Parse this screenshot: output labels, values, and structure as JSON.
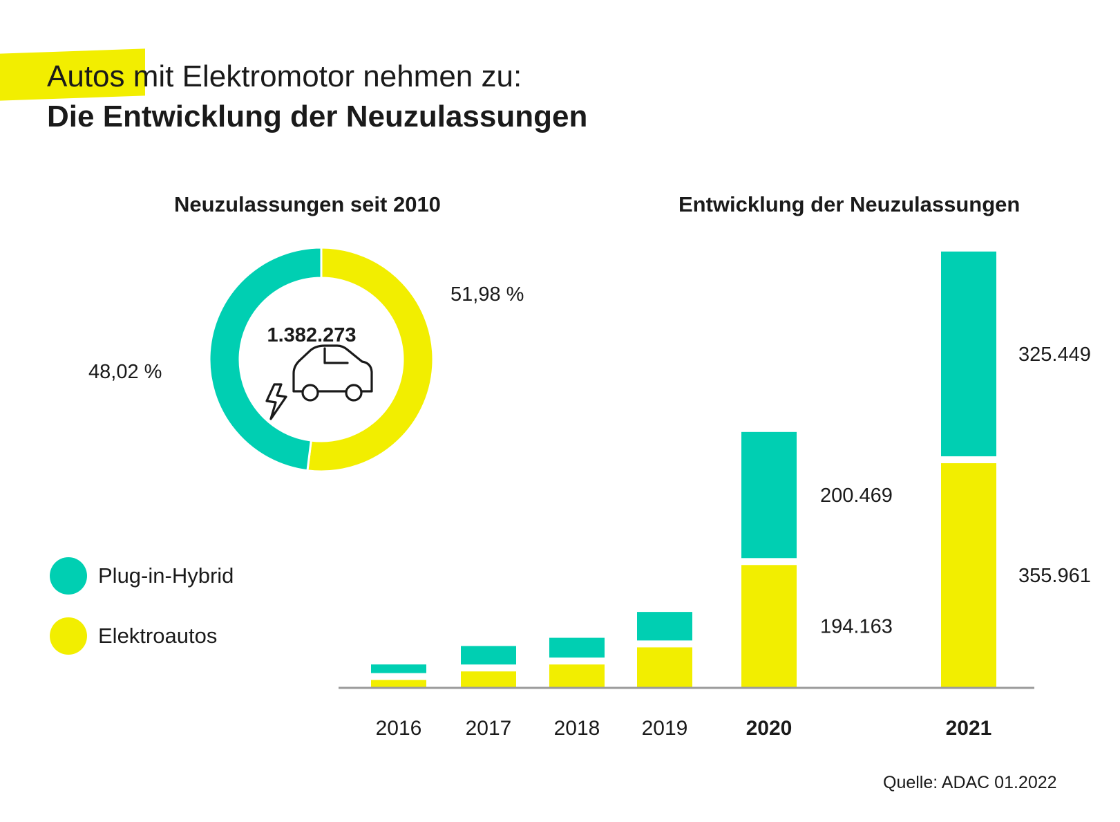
{
  "title": {
    "line1_highlight": "Autos",
    "line1_rest": " mit Elektromotor nehmen zu:",
    "line2": "Die Entwicklung der Neuzulassungen"
  },
  "colors": {
    "hybrid": "#00cfb2",
    "elektro": "#f2ee00",
    "axis": "#9a9a9a",
    "text": "#1a1a1a"
  },
  "icons": {
    "center": "electric-car-icon"
  },
  "legend": [
    {
      "label": "Plug-in-Hybrid",
      "color_key": "hybrid"
    },
    {
      "label": "Elektroautos",
      "color_key": "elektro"
    }
  ],
  "source": "Quelle: ADAC 01.2022",
  "chart_data": [
    {
      "type": "pie",
      "variant": "donut",
      "title": "Neuzulassungen seit 2010",
      "center_value": "1.382.273",
      "slices": [
        {
          "name": "Elektroautos",
          "value": 51.98,
          "label": "51,98 %"
        },
        {
          "name": "Plug-in-Hybrid",
          "value": 48.02,
          "label": "48,02 %"
        }
      ]
    },
    {
      "type": "bar",
      "stacked": true,
      "title": "Entwicklung der Neuzulassungen",
      "categories": [
        "2016",
        "2017",
        "2018",
        "2019",
        "2020",
        "2021"
      ],
      "bold_categories": [
        "2020",
        "2021"
      ],
      "series": [
        {
          "name": "Elektroautos",
          "values": [
            11410,
            25056,
            36062,
            63281,
            194163,
            355961
          ],
          "labels": [
            null,
            null,
            null,
            null,
            "194.163",
            "355.961"
          ]
        },
        {
          "name": "Plug-in-Hybrid",
          "values": [
            13744,
            29436,
            31442,
            45348,
            200469,
            325449
          ],
          "labels": [
            null,
            null,
            null,
            null,
            "200.469",
            "325.449"
          ]
        }
      ],
      "ylim": [
        0,
        690000
      ]
    }
  ]
}
